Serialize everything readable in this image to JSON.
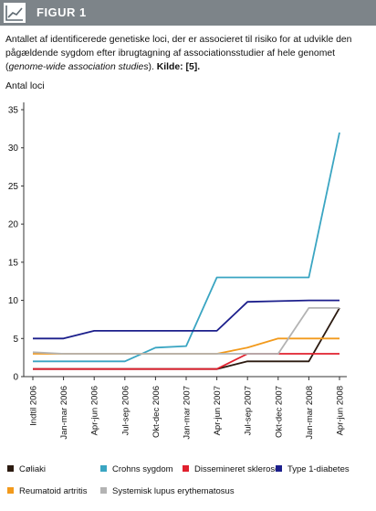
{
  "header": {
    "title": "FIGUR 1",
    "icon": "chart-line-icon"
  },
  "caption": {
    "part1": "Antallet af identificerede genetiske loci, der er associeret til risiko for at udvikle den pågældende sygdom efter ibrugtagning af associationsstudier af hele genomet (",
    "italic": "genome-wide association studies",
    "part2": "). ",
    "source": "Kilde: [5]."
  },
  "chart_data": {
    "type": "line",
    "ylabel": "Antal loci",
    "xlabel": "",
    "ylim": [
      0,
      35
    ],
    "yticks": [
      0,
      5,
      10,
      15,
      20,
      25,
      30,
      35
    ],
    "grid": false,
    "legend_position": "bottom",
    "categories": [
      "Indtil 2006",
      "Jan-mar 2006",
      "Apr-jun 2006",
      "Jul-sep 2006",
      "Okt-dec 2006",
      "Jan-mar 2007",
      "Apr-jun 2007",
      "Jul-sep 2007",
      "Okt-dec 2007",
      "Jan-mar 2008",
      "Apr-jun 2008"
    ],
    "series": [
      {
        "name": "Cøliaki",
        "color": "#2b1a10",
        "values": [
          1,
          1,
          1,
          1,
          1,
          1,
          1,
          2,
          2,
          2,
          9
        ]
      },
      {
        "name": "Crohns sygdom",
        "color": "#3aa5c2",
        "values": [
          2,
          2,
          2,
          2,
          3.8,
          4,
          13,
          13,
          13,
          13,
          32
        ]
      },
      {
        "name": "Dissemineret sklerose",
        "color": "#e0202e",
        "values": [
          1,
          1,
          1,
          1,
          1,
          1,
          1,
          3,
          3,
          3,
          3
        ]
      },
      {
        "name": "Type 1-diabetes",
        "color": "#1c1f8c",
        "values": [
          5,
          5,
          6,
          6,
          6,
          6,
          6,
          9.8,
          9.9,
          10,
          10
        ]
      },
      {
        "name": "Reumatoid artritis",
        "color": "#f29a1c",
        "values": [
          3,
          3,
          3,
          3,
          3,
          3,
          3,
          3.8,
          5,
          5,
          5
        ]
      },
      {
        "name": "Systemisk lupus erythematosus",
        "color": "#b3b3b3",
        "values": [
          3.2,
          3,
          3,
          3,
          3,
          3,
          3,
          3,
          3,
          9,
          9
        ]
      }
    ]
  }
}
